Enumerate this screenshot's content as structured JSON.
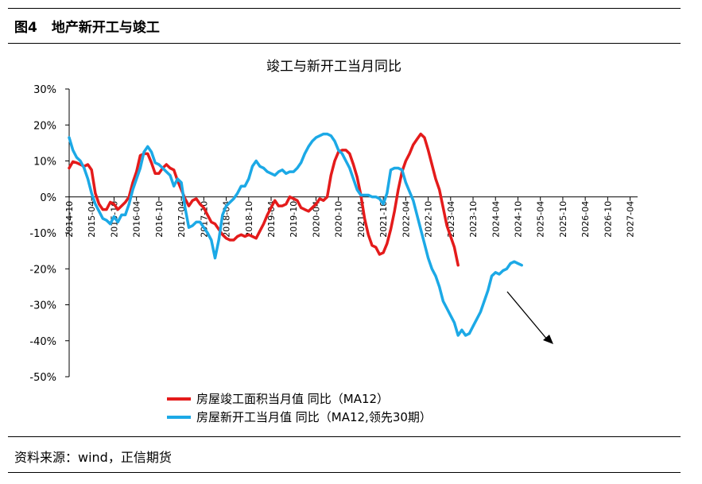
{
  "header": {
    "fig_no": "图4",
    "fig_title": "地产新开工与竣工"
  },
  "footer": {
    "source": "资料来源：wind，正信期货"
  },
  "chart_data": {
    "type": "line",
    "title": "竣工与新开工当月同比",
    "ylim": [
      -0.5,
      0.3
    ],
    "y_ticks": [
      "30%",
      "20%",
      "10%",
      "0%",
      "-10%",
      "-20%",
      "-30%",
      "-40%",
      "-50%"
    ],
    "y_tick_values": [
      0.3,
      0.2,
      0.1,
      0,
      -0.1,
      -0.2,
      -0.3,
      -0.4,
      -0.5
    ],
    "x_start": "2014-10",
    "x_end": "2027-06",
    "x_ticks": [
      "2014-10",
      "2015-04",
      "2015-10",
      "2016-04",
      "2016-10",
      "2017-04",
      "2017-10",
      "2018-04",
      "2018-10",
      "2019-04",
      "2019-10",
      "2020-04",
      "2020-10",
      "2021-04",
      "2021-10",
      "2022-04",
      "2022-10",
      "2023-04",
      "2023-10",
      "2024-04",
      "2024-10",
      "2025-04",
      "2025-10",
      "2026-04",
      "2026-10",
      "2027-04"
    ],
    "series": [
      {
        "name": "房屋竣工面积当月值 同比（MA12）",
        "color": "#e41b1b",
        "points": [
          [
            "2014-10",
            0.08
          ],
          [
            "2014-11",
            0.098
          ],
          [
            "2014-12",
            0.095
          ],
          [
            "2015-01",
            0.09
          ],
          [
            "2015-02",
            0.085
          ],
          [
            "2015-03",
            0.09
          ],
          [
            "2015-04",
            0.075
          ],
          [
            "2015-05",
            0.01
          ],
          [
            "2015-06",
            -0.02
          ],
          [
            "2015-07",
            -0.035
          ],
          [
            "2015-08",
            -0.035
          ],
          [
            "2015-09",
            -0.015
          ],
          [
            "2015-10",
            -0.02
          ],
          [
            "2015-11",
            -0.035
          ],
          [
            "2015-12",
            -0.025
          ],
          [
            "2016-01",
            -0.015
          ],
          [
            "2016-02",
            0.0
          ],
          [
            "2016-03",
            0.04
          ],
          [
            "2016-04",
            0.07
          ],
          [
            "2016-05",
            0.115
          ],
          [
            "2016-06",
            0.12
          ],
          [
            "2016-07",
            0.12
          ],
          [
            "2016-08",
            0.095
          ],
          [
            "2016-09",
            0.065
          ],
          [
            "2016-10",
            0.065
          ],
          [
            "2016-11",
            0.08
          ],
          [
            "2016-12",
            0.09
          ],
          [
            "2017-01",
            0.08
          ],
          [
            "2017-02",
            0.075
          ],
          [
            "2017-03",
            0.045
          ],
          [
            "2017-04",
            0.02
          ],
          [
            "2017-05",
            -0.005
          ],
          [
            "2017-06",
            -0.025
          ],
          [
            "2017-07",
            -0.01
          ],
          [
            "2017-08",
            -0.005
          ],
          [
            "2017-09",
            -0.02
          ],
          [
            "2017-10",
            -0.03
          ],
          [
            "2017-11",
            -0.05
          ],
          [
            "2017-12",
            -0.07
          ],
          [
            "2018-01",
            -0.075
          ],
          [
            "2018-02",
            -0.09
          ],
          [
            "2018-03",
            -0.105
          ],
          [
            "2018-04",
            -0.115
          ],
          [
            "2018-05",
            -0.12
          ],
          [
            "2018-06",
            -0.12
          ],
          [
            "2018-07",
            -0.11
          ],
          [
            "2018-08",
            -0.105
          ],
          [
            "2018-09",
            -0.11
          ],
          [
            "2018-10",
            -0.105
          ],
          [
            "2018-11",
            -0.11
          ],
          [
            "2018-12",
            -0.115
          ],
          [
            "2019-01",
            -0.095
          ],
          [
            "2019-02",
            -0.075
          ],
          [
            "2019-03",
            -0.05
          ],
          [
            "2019-04",
            -0.03
          ],
          [
            "2019-05",
            -0.01
          ],
          [
            "2019-06",
            -0.025
          ],
          [
            "2019-07",
            -0.025
          ],
          [
            "2019-08",
            -0.02
          ],
          [
            "2019-09",
            0.0
          ],
          [
            "2019-10",
            -0.005
          ],
          [
            "2019-11",
            -0.01
          ],
          [
            "2019-12",
            -0.03
          ],
          [
            "2020-01",
            -0.035
          ],
          [
            "2020-02",
            -0.04
          ],
          [
            "2020-03",
            -0.03
          ],
          [
            "2020-04",
            -0.02
          ],
          [
            "2020-05",
            -0.005
          ],
          [
            "2020-06",
            -0.01
          ],
          [
            "2020-07",
            0.0
          ],
          [
            "2020-08",
            0.06
          ],
          [
            "2020-09",
            0.1
          ],
          [
            "2020-10",
            0.125
          ],
          [
            "2020-11",
            0.13
          ],
          [
            "2020-12",
            0.13
          ],
          [
            "2021-01",
            0.12
          ],
          [
            "2021-02",
            0.09
          ],
          [
            "2021-03",
            0.055
          ],
          [
            "2021-04",
            0.005
          ],
          [
            "2021-05",
            -0.06
          ],
          [
            "2021-06",
            -0.105
          ],
          [
            "2021-07",
            -0.135
          ],
          [
            "2021-08",
            -0.14
          ],
          [
            "2021-09",
            -0.16
          ],
          [
            "2021-10",
            -0.155
          ],
          [
            "2021-11",
            -0.13
          ],
          [
            "2021-12",
            -0.09
          ],
          [
            "2022-01",
            -0.04
          ],
          [
            "2022-02",
            0.02
          ],
          [
            "2022-03",
            0.07
          ],
          [
            "2022-04",
            0.1
          ],
          [
            "2022-05",
            0.12
          ],
          [
            "2022-06",
            0.145
          ],
          [
            "2022-07",
            0.16
          ],
          [
            "2022-08",
            0.175
          ],
          [
            "2022-09",
            0.165
          ],
          [
            "2022-10",
            0.13
          ],
          [
            "2022-11",
            0.09
          ],
          [
            "2022-12",
            0.05
          ],
          [
            "2023-01",
            0.02
          ],
          [
            "2023-02",
            -0.03
          ],
          [
            "2023-03",
            -0.08
          ],
          [
            "2023-04",
            -0.11
          ],
          [
            "2023-05",
            -0.14
          ],
          [
            "2023-06",
            -0.19
          ]
        ]
      },
      {
        "name": "房屋新开工当月值 同比（MA12,领先30期）",
        "color": "#1ca9e6",
        "points": [
          [
            "2014-10",
            0.165
          ],
          [
            "2014-11",
            0.13
          ],
          [
            "2014-12",
            0.11
          ],
          [
            "2015-01",
            0.1
          ],
          [
            "2015-02",
            0.08
          ],
          [
            "2015-03",
            0.05
          ],
          [
            "2015-04",
            0.01
          ],
          [
            "2015-05",
            -0.02
          ],
          [
            "2015-06",
            -0.04
          ],
          [
            "2015-07",
            -0.06
          ],
          [
            "2015-08",
            -0.065
          ],
          [
            "2015-09",
            -0.075
          ],
          [
            "2015-10",
            -0.055
          ],
          [
            "2015-11",
            -0.07
          ],
          [
            "2015-12",
            -0.05
          ],
          [
            "2016-01",
            -0.05
          ],
          [
            "2016-02",
            -0.02
          ],
          [
            "2016-03",
            0.02
          ],
          [
            "2016-04",
            0.05
          ],
          [
            "2016-05",
            0.08
          ],
          [
            "2016-06",
            0.125
          ],
          [
            "2016-07",
            0.14
          ],
          [
            "2016-08",
            0.125
          ],
          [
            "2016-09",
            0.095
          ],
          [
            "2016-10",
            0.09
          ],
          [
            "2016-11",
            0.08
          ],
          [
            "2016-12",
            0.07
          ],
          [
            "2017-01",
            0.06
          ],
          [
            "2017-02",
            0.03
          ],
          [
            "2017-03",
            0.05
          ],
          [
            "2017-04",
            0.04
          ],
          [
            "2017-05",
            -0.03
          ],
          [
            "2017-06",
            -0.085
          ],
          [
            "2017-07",
            -0.08
          ],
          [
            "2017-08",
            -0.07
          ],
          [
            "2017-09",
            -0.07
          ],
          [
            "2017-10",
            -0.085
          ],
          [
            "2017-11",
            -0.1
          ],
          [
            "2017-12",
            -0.12
          ],
          [
            "2018-01",
            -0.17
          ],
          [
            "2018-02",
            -0.12
          ],
          [
            "2018-03",
            -0.05
          ],
          [
            "2018-04",
            -0.025
          ],
          [
            "2018-05",
            -0.015
          ],
          [
            "2018-06",
            -0.005
          ],
          [
            "2018-07",
            0.01
          ],
          [
            "2018-08",
            0.03
          ],
          [
            "2018-09",
            0.03
          ],
          [
            "2018-10",
            0.05
          ],
          [
            "2018-11",
            0.085
          ],
          [
            "2018-12",
            0.1
          ],
          [
            "2019-01",
            0.085
          ],
          [
            "2019-02",
            0.08
          ],
          [
            "2019-03",
            0.07
          ],
          [
            "2019-04",
            0.065
          ],
          [
            "2019-05",
            0.06
          ],
          [
            "2019-06",
            0.07
          ],
          [
            "2019-07",
            0.075
          ],
          [
            "2019-08",
            0.065
          ],
          [
            "2019-09",
            0.07
          ],
          [
            "2019-10",
            0.07
          ],
          [
            "2019-11",
            0.08
          ],
          [
            "2019-12",
            0.095
          ],
          [
            "2020-01",
            0.12
          ],
          [
            "2020-02",
            0.14
          ],
          [
            "2020-03",
            0.155
          ],
          [
            "2020-04",
            0.165
          ],
          [
            "2020-05",
            0.17
          ],
          [
            "2020-06",
            0.175
          ],
          [
            "2020-07",
            0.175
          ],
          [
            "2020-08",
            0.17
          ],
          [
            "2020-09",
            0.155
          ],
          [
            "2020-10",
            0.13
          ],
          [
            "2020-11",
            0.12
          ],
          [
            "2020-12",
            0.1
          ],
          [
            "2021-01",
            0.08
          ],
          [
            "2021-02",
            0.05
          ],
          [
            "2021-03",
            0.02
          ],
          [
            "2021-04",
            0.005
          ],
          [
            "2021-05",
            0.005
          ],
          [
            "2021-06",
            0.005
          ],
          [
            "2021-07",
            0.0
          ],
          [
            "2021-08",
            0.0
          ],
          [
            "2021-09",
            -0.005
          ],
          [
            "2021-10",
            -0.02
          ],
          [
            "2021-11",
            0.01
          ],
          [
            "2021-12",
            0.075
          ],
          [
            "2022-01",
            0.08
          ],
          [
            "2022-02",
            0.08
          ],
          [
            "2022-03",
            0.075
          ],
          [
            "2022-04",
            0.04
          ],
          [
            "2022-05",
            0.015
          ],
          [
            "2022-06",
            -0.01
          ],
          [
            "2022-07",
            -0.05
          ],
          [
            "2022-08",
            -0.09
          ],
          [
            "2022-09",
            -0.13
          ],
          [
            "2022-10",
            -0.17
          ],
          [
            "2022-11",
            -0.2
          ],
          [
            "2022-12",
            -0.22
          ],
          [
            "2023-01",
            -0.25
          ],
          [
            "2023-02",
            -0.29
          ],
          [
            "2023-03",
            -0.31
          ],
          [
            "2023-04",
            -0.33
          ],
          [
            "2023-05",
            -0.35
          ],
          [
            "2023-06",
            -0.385
          ],
          [
            "2023-07",
            -0.37
          ],
          [
            "2023-08",
            -0.385
          ],
          [
            "2023-09",
            -0.38
          ],
          [
            "2023-10",
            -0.36
          ],
          [
            "2023-11",
            -0.34
          ],
          [
            "2023-12",
            -0.32
          ],
          [
            "2024-01",
            -0.29
          ],
          [
            "2024-02",
            -0.26
          ],
          [
            "2024-03",
            -0.22
          ],
          [
            "2024-04",
            -0.21
          ],
          [
            "2024-05",
            -0.215
          ],
          [
            "2024-06",
            -0.205
          ],
          [
            "2024-07",
            -0.2
          ],
          [
            "2024-08",
            -0.185
          ],
          [
            "2024-09",
            -0.18
          ],
          [
            "2024-10",
            -0.185
          ],
          [
            "2024-11",
            -0.19
          ]
        ]
      }
    ]
  }
}
